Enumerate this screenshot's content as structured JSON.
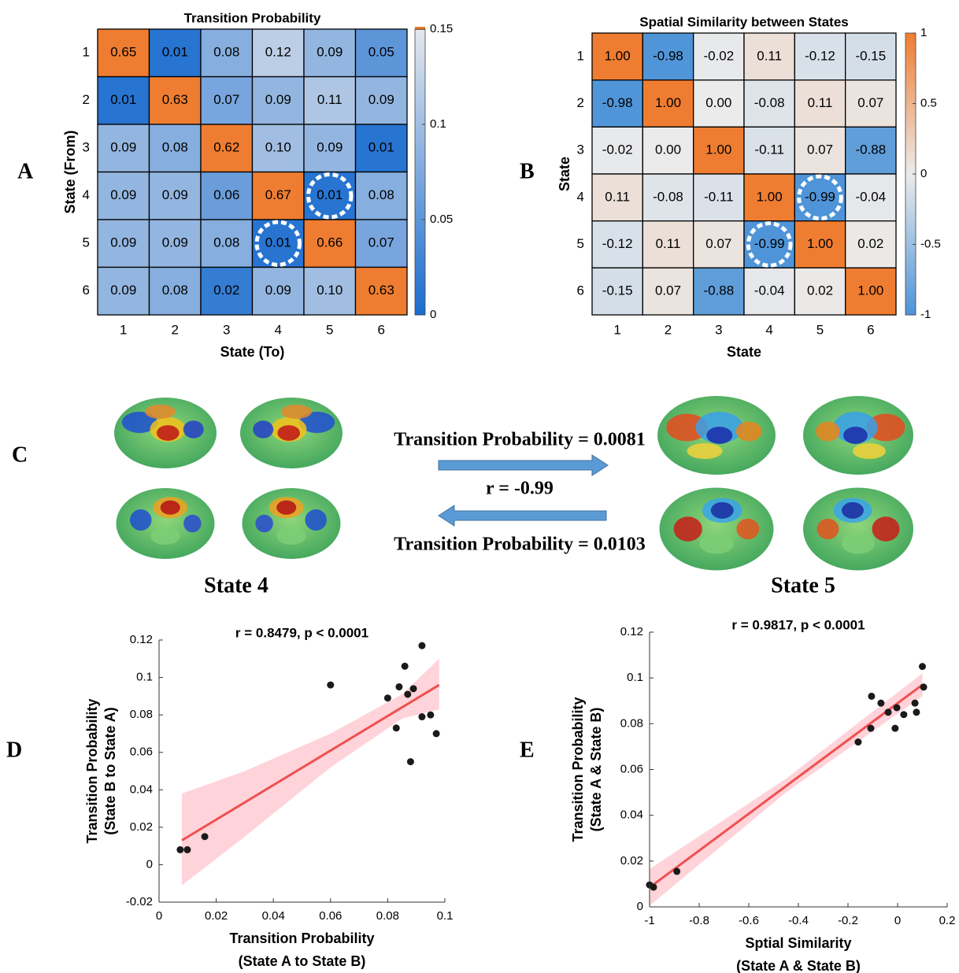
{
  "chart_data": [
    {
      "type": "heatmap",
      "panel_label": "A",
      "title": "Transition Probability",
      "xlabel": "State (To)",
      "ylabel": "State (From)",
      "x_categories": [
        1,
        2,
        3,
        4,
        5,
        6
      ],
      "y_categories": [
        1,
        2,
        3,
        4,
        5,
        6
      ],
      "values": [
        [
          0.65,
          0.01,
          0.08,
          0.12,
          0.09,
          0.05
        ],
        [
          0.01,
          0.63,
          0.07,
          0.09,
          0.11,
          0.09
        ],
        [
          0.09,
          0.08,
          0.62,
          0.1,
          0.09,
          0.01
        ],
        [
          0.09,
          0.09,
          0.06,
          0.67,
          0.01,
          0.08
        ],
        [
          0.09,
          0.09,
          0.08,
          0.01,
          0.66,
          0.07
        ],
        [
          0.09,
          0.08,
          0.02,
          0.09,
          0.1,
          0.63
        ]
      ],
      "value_labels": [
        [
          "0.65",
          "0.01",
          "0.08",
          "0.12",
          "0.09",
          "0.05"
        ],
        [
          "0.01",
          "0.63",
          "0.07",
          "0.09",
          "0.11",
          "0.09"
        ],
        [
          "0.09",
          "0.08",
          "0.62",
          "0.10",
          "0.09",
          "0.01"
        ],
        [
          "0.09",
          "0.09",
          "0.06",
          "0.67",
          "0.01",
          "0.08"
        ],
        [
          "0.09",
          "0.09",
          "0.08",
          "0.01",
          "0.66",
          "0.07"
        ],
        [
          "0.09",
          "0.08",
          "0.02",
          "0.09",
          "0.10",
          "0.63"
        ]
      ],
      "clim": [
        0,
        0.15
      ],
      "cticks": [
        0,
        0.05,
        0.1,
        0.15
      ],
      "colormap": [
        "#1a6ccf",
        "#e4e7ec"
      ],
      "above_color": "#ef7d31",
      "highlight_cells": [
        [
          4,
          5
        ],
        [
          5,
          4
        ]
      ]
    },
    {
      "type": "heatmap",
      "panel_label": "B",
      "title": "Spatial Similarity between States",
      "xlabel": "State",
      "ylabel": "State",
      "x_categories": [
        1,
        2,
        3,
        4,
        5,
        6
      ],
      "y_categories": [
        1,
        2,
        3,
        4,
        5,
        6
      ],
      "values": [
        [
          1.0,
          -0.98,
          -0.02,
          0.11,
          -0.12,
          -0.15
        ],
        [
          -0.98,
          1.0,
          0.0,
          -0.08,
          0.11,
          0.07
        ],
        [
          -0.02,
          0.0,
          1.0,
          -0.11,
          0.07,
          -0.88
        ],
        [
          0.11,
          -0.08,
          -0.11,
          1.0,
          -0.99,
          -0.04
        ],
        [
          -0.12,
          0.11,
          0.07,
          -0.99,
          1.0,
          0.02
        ],
        [
          -0.15,
          0.07,
          -0.88,
          -0.04,
          0.02,
          1.0
        ]
      ],
      "value_labels": [
        [
          "1.00",
          "-0.98",
          "-0.02",
          "0.11",
          "-0.12",
          "-0.15"
        ],
        [
          "-0.98",
          "1.00",
          "0.00",
          "-0.08",
          "0.11",
          "0.07"
        ],
        [
          "-0.02",
          "0.00",
          "1.00",
          "-0.11",
          "0.07",
          "-0.88"
        ],
        [
          "0.11",
          "-0.08",
          "-0.11",
          "1.00",
          "-0.99",
          "-0.04"
        ],
        [
          "-0.12",
          "0.11",
          "0.07",
          "-0.99",
          "1.00",
          "0.02"
        ],
        [
          "-0.15",
          "0.07",
          "-0.88",
          "-0.04",
          "0.02",
          "1.00"
        ]
      ],
      "clim": [
        -1,
        1
      ],
      "cticks": [
        -1,
        -0.5,
        0,
        0.5,
        1
      ],
      "colormap": [
        "#4d93d8",
        "#ebebeb",
        "#ef7d31"
      ],
      "highlight_cells": [
        [
          4,
          5
        ],
        [
          5,
          4
        ]
      ]
    },
    {
      "type": "scatter",
      "panel_label": "D",
      "annotation": "r = 0.8479,  p < 0.0001",
      "xlabel": [
        "Transition Probability",
        "(State A to State B)"
      ],
      "ylabel": [
        "Transition Probability",
        "(State B to State A)"
      ],
      "x": [
        0.0074,
        0.0099,
        0.016,
        0.06,
        0.08,
        0.083,
        0.084,
        0.086,
        0.087,
        0.089,
        0.088,
        0.092,
        0.092,
        0.095,
        0.097
      ],
      "y": [
        0.008,
        0.008,
        0.015,
        0.096,
        0.089,
        0.073,
        0.095,
        0.106,
        0.091,
        0.094,
        0.055,
        0.117,
        0.079,
        0.08,
        0.07
      ],
      "color": "#1a1a1a",
      "fit_line": {
        "x": [
          0.008,
          0.098
        ],
        "y": [
          0.013,
          0.096
        ],
        "color": "#f05050"
      },
      "confidence_band": {
        "x": [
          0.008,
          0.03,
          0.06,
          0.085,
          0.098
        ],
        "lower": [
          -0.011,
          0.015,
          0.052,
          0.078,
          0.083
        ],
        "upper": [
          0.038,
          0.05,
          0.07,
          0.091,
          0.11
        ],
        "color": "#ffc4cd"
      },
      "xlim": [
        0,
        0.1
      ],
      "xticks": [
        0,
        0.02,
        0.04,
        0.06,
        0.08,
        0.1
      ],
      "ylim": [
        -0.02,
        0.12
      ],
      "yticks": [
        -0.02,
        0,
        0.02,
        0.04,
        0.06,
        0.08,
        0.1,
        0.12
      ]
    },
    {
      "type": "scatter",
      "panel_label": "E",
      "annotation": "r = 0.9817,  p < 0.0001",
      "xlabel": [
        "Sptial Similarity",
        "(State A & State B)"
      ],
      "ylabel": [
        "Transition Probability",
        "(State A & State B)"
      ],
      "x": [
        -1.0,
        -0.984,
        -0.89,
        -0.159,
        -0.108,
        -0.105,
        -0.067,
        -0.038,
        -0.01,
        -0.003,
        0.025,
        0.07,
        0.076,
        0.1,
        0.105
      ],
      "y": [
        0.0096,
        0.0086,
        0.0155,
        0.072,
        0.078,
        0.092,
        0.089,
        0.085,
        0.078,
        0.087,
        0.084,
        0.089,
        0.085,
        0.105,
        0.096
      ],
      "color": "#1a1a1a",
      "fit_line": {
        "x": [
          -1,
          0.1
        ],
        "y": [
          0.0085,
          0.097
        ],
        "color": "#f05050"
      },
      "confidence_band": {
        "x": [
          -1,
          -0.45,
          0.1
        ],
        "lower": [
          0.0005,
          0.05,
          0.092
        ],
        "upper": [
          0.0165,
          0.056,
          0.102
        ],
        "color": "#ffc4cd"
      },
      "xlim": [
        -1,
        0.2
      ],
      "xticks": [
        -1,
        -0.8,
        -0.6,
        -0.4,
        -0.2,
        0,
        0.2
      ],
      "ylim": [
        0,
        0.12
      ],
      "yticks": [
        0,
        0.02,
        0.04,
        0.06,
        0.08,
        0.1,
        0.12
      ]
    }
  ],
  "panel_c": {
    "panel_label": "C",
    "forward": "Transition Probability = 0.0081",
    "correlation": "r = -0.99",
    "backward": "Transition Probability = 0.0103",
    "left_state": "State 4",
    "right_state": "State 5"
  }
}
